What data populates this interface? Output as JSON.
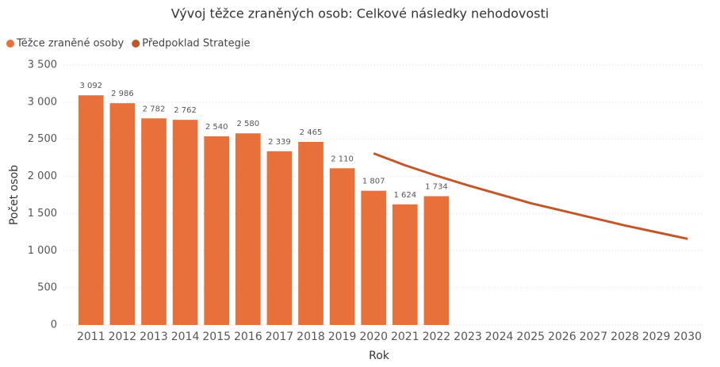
{
  "chart_data": {
    "type": "bar",
    "title": "Vývoj těžce zraněných osob: Celkové následky nehodovosti",
    "x_label": "Rok",
    "y_label": "Počet osob",
    "categories": [
      "2011",
      "2012",
      "2013",
      "2014",
      "2015",
      "2016",
      "2017",
      "2018",
      "2019",
      "2020",
      "2021",
      "2022",
      "2023",
      "2024",
      "2025",
      "2026",
      "2027",
      "2028",
      "2029",
      "2030"
    ],
    "series": [
      {
        "name": "Těžce zraněné osoby",
        "type": "bar",
        "color": "#e8703a",
        "values": [
          3092,
          2986,
          2782,
          2762,
          2540,
          2580,
          2339,
          2465,
          2110,
          1807,
          1624,
          1734,
          null,
          null,
          null,
          null,
          null,
          null,
          null,
          null
        ],
        "value_labels": [
          "3 092",
          "2 986",
          "2 782",
          "2 762",
          "2 540",
          "2 580",
          "2 339",
          "2 465",
          "2 110",
          "1 807",
          "1 624",
          "1 734",
          null,
          null,
          null,
          null,
          null,
          null,
          null,
          null
        ]
      },
      {
        "name": "Předpoklad Strategie",
        "type": "line",
        "color": "#c0582b",
        "values": [
          null,
          null,
          null,
          null,
          null,
          null,
          null,
          null,
          null,
          2310,
          2150,
          2010,
          1880,
          1760,
          1640,
          1540,
          1440,
          1340,
          1250,
          1160
        ]
      }
    ],
    "ylim": [
      0,
      3500
    ],
    "yticks": [
      0,
      500,
      {
        "value": 1000,
        "label": "1 000"
      },
      {
        "value": 1500,
        "label": "1 500"
      },
      {
        "value": 2000,
        "label": "2 000"
      },
      {
        "value": 2500,
        "label": "2 500"
      },
      {
        "value": 3000,
        "label": "3 000"
      },
      {
        "value": 3500,
        "label": "3 500"
      }
    ],
    "grid": true,
    "legend": "top-left"
  }
}
